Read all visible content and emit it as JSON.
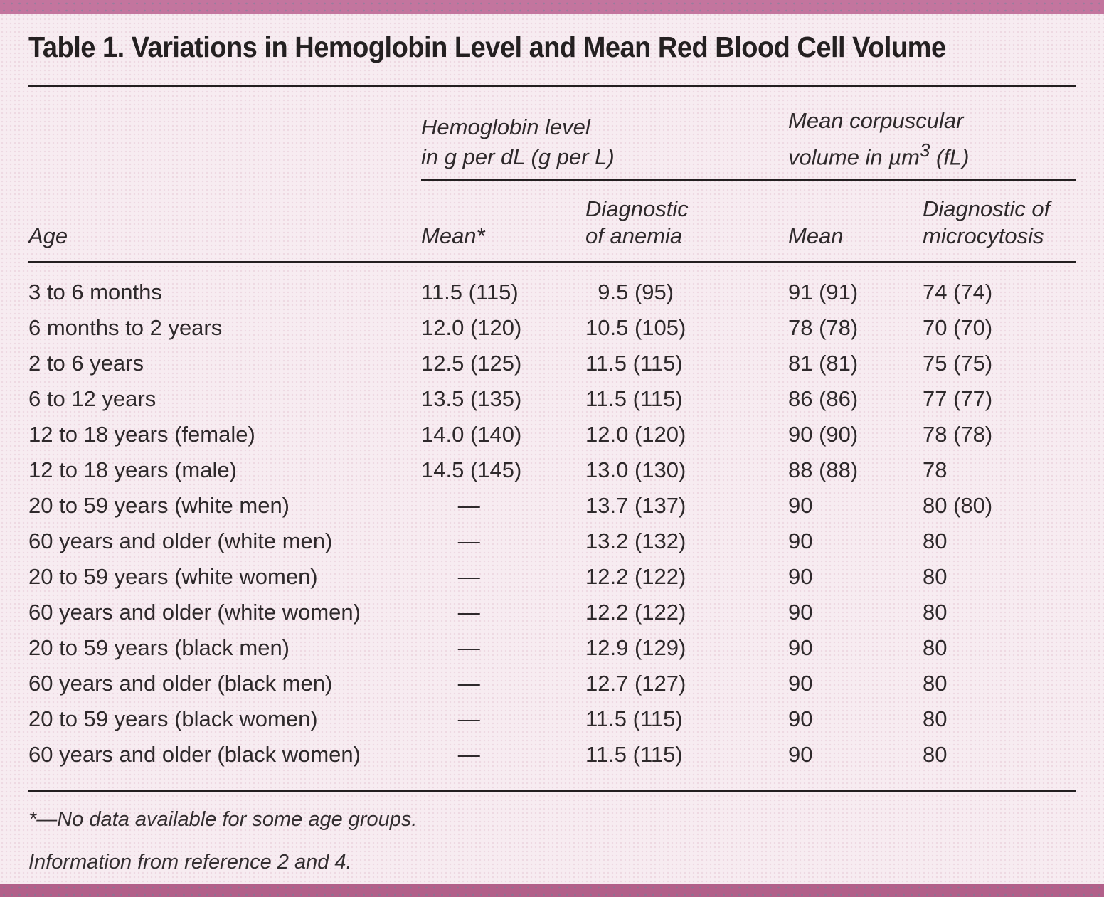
{
  "page": {
    "title": "Table 1. Variations in Hemoglobin Level and Mean Red Blood Cell Volume"
  },
  "table": {
    "group_headers": {
      "hemoglobin": {
        "line1": "Hemoglobin level",
        "line2": "in g per dL (g per L)"
      },
      "mcv": {
        "line1": "Mean corpuscular",
        "line2_pre": "volume in µm",
        "line2_sup": "3",
        "line2_post": " (fL)"
      }
    },
    "column_headers": {
      "age": "Age",
      "hb_mean": "Mean*",
      "hb_diagnostic_line1": "Diagnostic",
      "hb_diagnostic_line2": "of anemia",
      "mcv_mean": "Mean",
      "mcv_diagnostic_line1": "Diagnostic of",
      "mcv_diagnostic_line2": "microcytosis"
    },
    "rows": [
      {
        "age": "3 to 6 months",
        "hb_mean": "11.5 (115)",
        "hb_diagnostic": " 9.5 (95)",
        "mcv_mean": "91 (91)",
        "mcv_diagnostic": "74 (74)"
      },
      {
        "age": "6 months to 2 years",
        "hb_mean": "12.0 (120)",
        "hb_diagnostic": "10.5 (105)",
        "mcv_mean": "78 (78)",
        "mcv_diagnostic": "70 (70)"
      },
      {
        "age": "2 to 6 years",
        "hb_mean": "12.5 (125)",
        "hb_diagnostic": "11.5 (115)",
        "mcv_mean": "81 (81)",
        "mcv_diagnostic": "75 (75)"
      },
      {
        "age": "6 to 12 years",
        "hb_mean": "13.5 (135)",
        "hb_diagnostic": "11.5 (115)",
        "mcv_mean": "86 (86)",
        "mcv_diagnostic": "77 (77)"
      },
      {
        "age": "12 to 18 years (female)",
        "hb_mean": "14.0 (140)",
        "hb_diagnostic": "12.0 (120)",
        "mcv_mean": "90 (90)",
        "mcv_diagnostic": "78 (78)"
      },
      {
        "age": "12 to 18 years (male)",
        "hb_mean": "14.5 (145)",
        "hb_diagnostic": "13.0 (130)",
        "mcv_mean": "88 (88)",
        "mcv_diagnostic": "78"
      },
      {
        "age": "20 to 59 years (white men)",
        "hb_mean": "   —",
        "hb_diagnostic": "13.7 (137)",
        "mcv_mean": "90",
        "mcv_diagnostic": "80 (80)"
      },
      {
        "age": "60 years and older (white men)",
        "hb_mean": "   —",
        "hb_diagnostic": "13.2 (132)",
        "mcv_mean": "90",
        "mcv_diagnostic": "80"
      },
      {
        "age": "20 to 59 years (white women)",
        "hb_mean": "   —",
        "hb_diagnostic": "12.2 (122)",
        "mcv_mean": "90",
        "mcv_diagnostic": "80"
      },
      {
        "age": "60 years and older (white women)",
        "hb_mean": "   —",
        "hb_diagnostic": "12.2 (122)",
        "mcv_mean": "90",
        "mcv_diagnostic": "80"
      },
      {
        "age": "20 to 59 years (black men)",
        "hb_mean": "   —",
        "hb_diagnostic": "12.9 (129)",
        "mcv_mean": "90",
        "mcv_diagnostic": "80"
      },
      {
        "age": "60 years and older (black men)",
        "hb_mean": "   —",
        "hb_diagnostic": "12.7 (127)",
        "mcv_mean": "90",
        "mcv_diagnostic": "80"
      },
      {
        "age": "20 to 59 years (black women)",
        "hb_mean": "   —",
        "hb_diagnostic": "11.5 (115)",
        "mcv_mean": "90",
        "mcv_diagnostic": "80"
      },
      {
        "age": "60 years and older (black women)",
        "hb_mean": "   —",
        "hb_diagnostic": "11.5 (115)",
        "mcv_mean": "90",
        "mcv_diagnostic": "80"
      }
    ]
  },
  "footnotes": [
    "*—No data available for some age groups.",
    "Information from reference 2 and 4."
  ],
  "colors": {
    "bar_top": "#c3759e",
    "bar_bottom": "#b2608a",
    "background": "#f7ecf1",
    "text": "#2e292b",
    "rule": "#231f20"
  }
}
